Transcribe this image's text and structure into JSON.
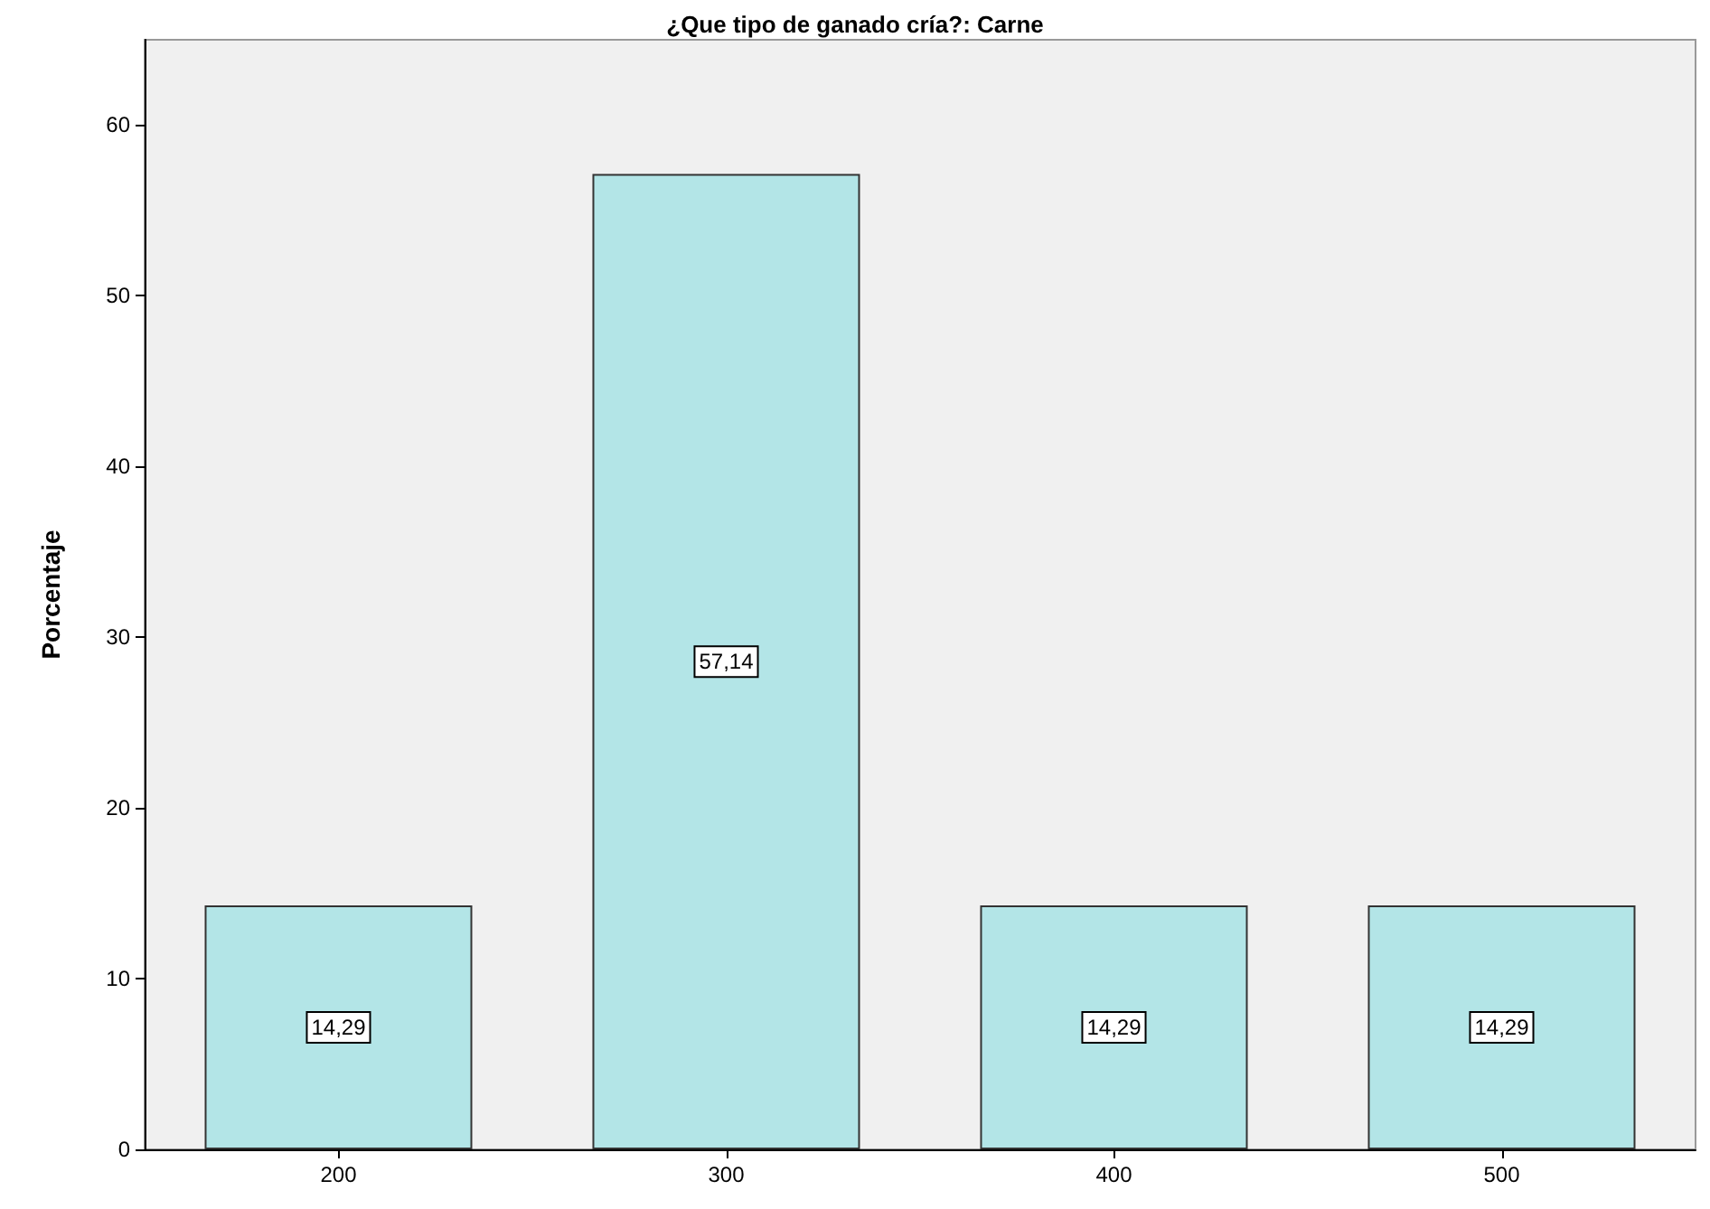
{
  "chart_data": {
    "type": "bar",
    "title": "¿Que tipo de ganado cría?: Carne",
    "ylabel": "Porcentaje",
    "categories": [
      "200",
      "300",
      "400",
      "500"
    ],
    "values": [
      14.29,
      57.14,
      14.29,
      14.29
    ],
    "value_labels": [
      "14,29",
      "57,14",
      "14,29",
      "14,29"
    ],
    "color": "#b3e5e7",
    "ylim": [
      0,
      65
    ],
    "yticks": [
      0,
      10,
      20,
      30,
      40,
      50,
      60
    ],
    "grid": false
  }
}
